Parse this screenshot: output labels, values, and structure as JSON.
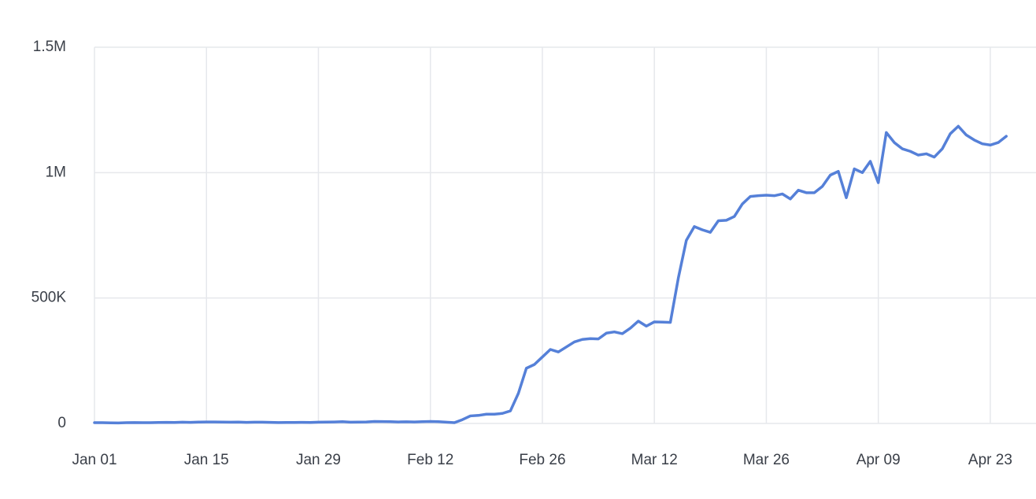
{
  "chart_data": {
    "type": "line",
    "categories": [
      "Jan 01",
      null,
      null,
      null,
      null,
      null,
      null,
      null,
      null,
      null,
      null,
      null,
      null,
      null,
      "Jan 15",
      null,
      null,
      null,
      null,
      null,
      null,
      null,
      null,
      null,
      null,
      null,
      null,
      null,
      "Jan 29",
      null,
      null,
      null,
      null,
      null,
      null,
      null,
      null,
      null,
      null,
      null,
      null,
      null,
      "Feb 12",
      null,
      null,
      null,
      null,
      null,
      null,
      null,
      null,
      null,
      null,
      null,
      null,
      null,
      "Feb 26",
      null,
      null,
      null,
      null,
      null,
      null,
      null,
      null,
      null,
      null,
      null,
      null,
      null,
      "Mar 12",
      null,
      null,
      null,
      null,
      null,
      null,
      null,
      null,
      null,
      null,
      null,
      null,
      null,
      "Mar 26",
      null,
      null,
      null,
      null,
      null,
      null,
      null,
      null,
      null,
      null,
      null,
      null,
      null,
      "Apr 09",
      null,
      null,
      null,
      null,
      null,
      null,
      null,
      null,
      null,
      null,
      null,
      null,
      null,
      "Apr 23",
      null,
      null
    ],
    "series": [
      {
        "color": "#5580d8",
        "values": [
          3000,
          3000,
          2500,
          2000,
          3000,
          3500,
          3000,
          3000,
          4000,
          4500,
          4000,
          5000,
          4500,
          5500,
          6000,
          6000,
          5500,
          5000,
          5500,
          4500,
          5000,
          5000,
          4500,
          3500,
          4000,
          4000,
          4500,
          4000,
          5000,
          5500,
          6000,
          7000,
          5000,
          5500,
          6000,
          8000,
          7500,
          7000,
          6000,
          6500,
          6000,
          7000,
          8000,
          7000,
          5000,
          3000,
          15000,
          30000,
          32000,
          37000,
          37000,
          40000,
          50000,
          120000,
          220000,
          235000,
          265000,
          295000,
          285000,
          305000,
          325000,
          335000,
          338000,
          337000,
          360000,
          365000,
          358000,
          380000,
          408000,
          388000,
          405000,
          404000,
          403000,
          580000,
          730000,
          785000,
          772000,
          762000,
          808000,
          810000,
          825000,
          875000,
          905000,
          908000,
          910000,
          908000,
          915000,
          895000,
          930000,
          920000,
          920000,
          945000,
          990000,
          1005000,
          900000,
          1015000,
          1000000,
          1045000,
          960000,
          1160000,
          1120000,
          1095000,
          1085000,
          1070000,
          1075000,
          1062000,
          1095000,
          1155000,
          1185000,
          1150000,
          1130000,
          1115000,
          1110000,
          1120000,
          1145000
        ]
      }
    ],
    "ylim": [
      0,
      1500000
    ],
    "yticks": [
      {
        "value": 0,
        "label": "0"
      },
      {
        "value": 500000,
        "label": "500K"
      },
      {
        "value": 1000000,
        "label": "1M"
      },
      {
        "value": 1500000,
        "label": "1.5M"
      }
    ],
    "grid": true
  }
}
